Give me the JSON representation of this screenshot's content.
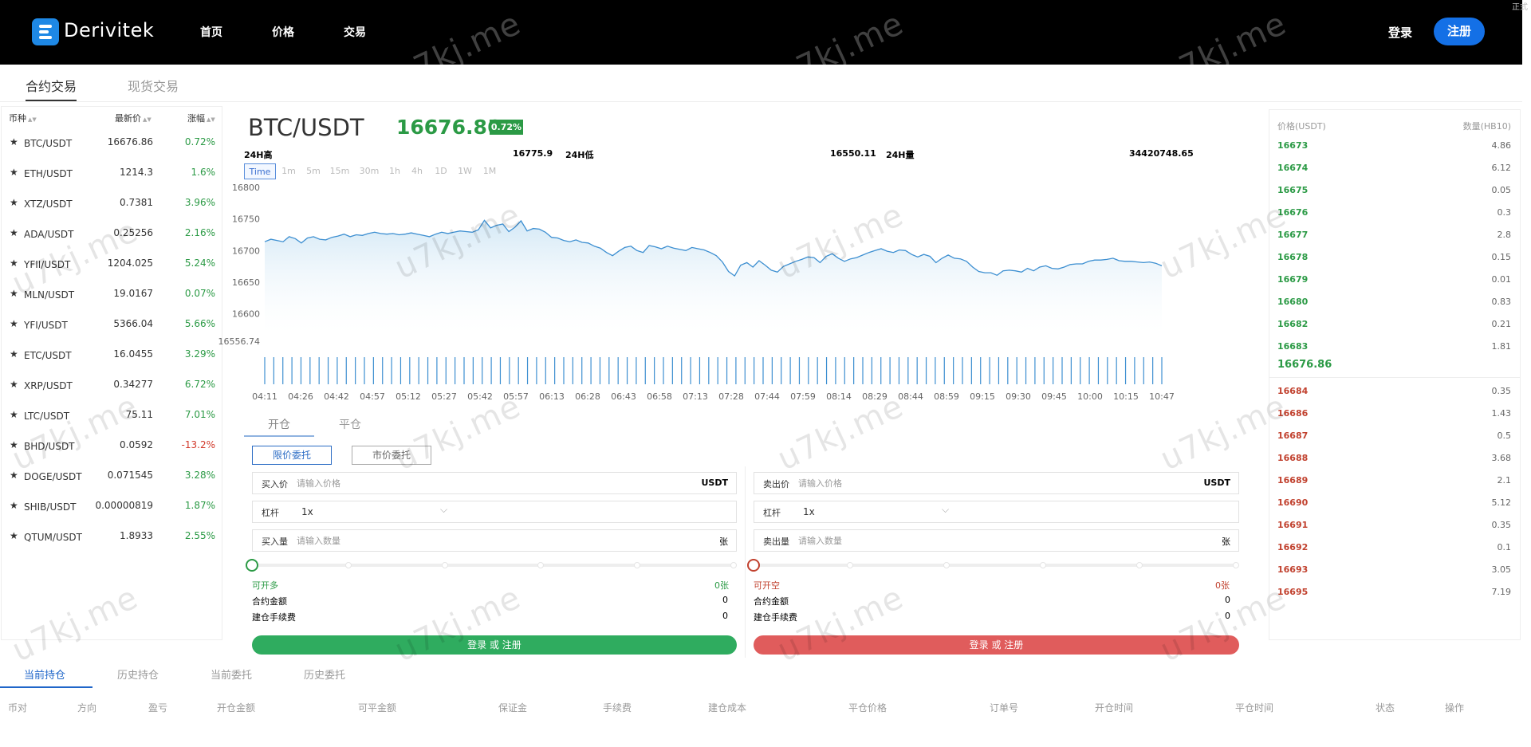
{
  "header": {
    "brand": "Derivitek",
    "nav": [
      "首页",
      "价格",
      "交易"
    ],
    "login": "登录",
    "register": "注册",
    "corner": "正式"
  },
  "subtabs": [
    "合约交易",
    "现货交易"
  ],
  "market": {
    "headers": [
      "币种",
      "最新价",
      "涨幅"
    ],
    "rows": [
      {
        "symbol": "BTC/USDT",
        "price": "16676.86",
        "change": "0.72%",
        "color": "#2b9a45"
      },
      {
        "symbol": "ETH/USDT",
        "price": "1214.3",
        "change": "1.6%",
        "color": "#2b9a45"
      },
      {
        "symbol": "XTZ/USDT",
        "price": "0.7381",
        "change": "3.96%",
        "color": "#2b9a45"
      },
      {
        "symbol": "ADA/USDT",
        "price": "0.25256",
        "change": "2.16%",
        "color": "#2b9a45"
      },
      {
        "symbol": "YFII/USDT",
        "price": "1204.025",
        "change": "5.24%",
        "color": "#2b9a45"
      },
      {
        "symbol": "MLN/USDT",
        "price": "19.0167",
        "change": "0.07%",
        "color": "#2b9a45"
      },
      {
        "symbol": "YFI/USDT",
        "price": "5366.04",
        "change": "5.66%",
        "color": "#2b9a45"
      },
      {
        "symbol": "ETC/USDT",
        "price": "16.0455",
        "change": "3.29%",
        "color": "#2b9a45"
      },
      {
        "symbol": "XRP/USDT",
        "price": "0.34277",
        "change": "6.72%",
        "color": "#2b9a45"
      },
      {
        "symbol": "LTC/USDT",
        "price": "75.11",
        "change": "7.01%",
        "color": "#2b9a45"
      },
      {
        "symbol": "BHD/USDT",
        "price": "0.0592",
        "change": "-13.2%",
        "color": "#d23b2c"
      },
      {
        "symbol": "DOGE/USDT",
        "price": "0.071545",
        "change": "3.28%",
        "color": "#2b9a45"
      },
      {
        "symbol": "SHIB/USDT",
        "price": "0.00000819",
        "change": "1.87%",
        "color": "#2b9a45"
      },
      {
        "symbol": "QTUM/USDT",
        "price": "1.8933",
        "change": "2.55%",
        "color": "#2b9a45"
      }
    ]
  },
  "ticker": {
    "pair": "BTC/USDT",
    "last": "16676.86",
    "change": "0.72%",
    "high_label": "24H高",
    "high": "16775.9",
    "low_label": "24H低",
    "low": "16550.11",
    "vol_label": "24H量",
    "vol": "34420748.65"
  },
  "timeframes": [
    "Time",
    "1m",
    "5m",
    "15m",
    "30m",
    "1h",
    "4h",
    "1D",
    "1W",
    "1M"
  ],
  "chart_data": {
    "type": "area",
    "title": "",
    "xlabel": "",
    "ylabel": "",
    "y_ticks": [
      "16800",
      "16750",
      "16700",
      "16650",
      "16600",
      "16556.74"
    ],
    "y_tick_values": [
      16800,
      16750,
      16700,
      16650,
      16600,
      16556.74
    ],
    "ylim": [
      16556.74,
      16800
    ],
    "x_ticks": [
      "04:11",
      "04:26",
      "04:42",
      "04:57",
      "05:12",
      "05:27",
      "05:42",
      "05:57",
      "06:13",
      "06:28",
      "06:43",
      "06:58",
      "07:13",
      "07:28",
      "07:44",
      "07:59",
      "08:14",
      "08:29",
      "08:44",
      "08:59",
      "09:15",
      "09:30",
      "09:45",
      "10:00",
      "10:15",
      "10:47"
    ],
    "series": [
      {
        "values": [
          16714,
          16718,
          16716,
          16714,
          16722,
          16719,
          16712,
          16720,
          16722,
          16718,
          16717,
          16721,
          16723,
          16726,
          16722,
          16725,
          16724,
          16727,
          16729,
          16727,
          16726,
          16727,
          16725,
          16726,
          16728,
          16726,
          16724,
          16722,
          16726,
          16729,
          16727,
          16729,
          16731,
          16730,
          16729,
          16733,
          16748,
          16736,
          16740,
          16742,
          16730,
          16737,
          16747,
          16731,
          16735,
          16734,
          16729,
          16721,
          16720,
          16716,
          16714,
          16717,
          16713,
          16712,
          16707,
          16704,
          16697,
          16692,
          16699,
          16705,
          16707,
          16700,
          16697,
          16708,
          16706,
          16703,
          16707,
          16704,
          16702,
          16700,
          16705,
          16703,
          16701,
          16697,
          16692,
          16682,
          16667,
          16660,
          16677,
          16681,
          16674,
          16684,
          16677,
          16669,
          16666,
          16675,
          16679,
          16683,
          16686,
          16690,
          16689,
          16681,
          16691,
          16695,
          16688,
          16683,
          16687,
          16689,
          16693,
          16697,
          16700,
          16703,
          16699,
          16697,
          16701,
          16700,
          16694,
          16690,
          16694,
          16691,
          16681,
          16688,
          16693,
          16688,
          16687,
          16683,
          16674,
          16667,
          16665,
          16665,
          16661,
          16668,
          16669,
          16668,
          16666,
          16672,
          16668,
          16674,
          16676,
          16672,
          16671,
          16674,
          16678,
          16679,
          16679,
          16683,
          16685,
          16685,
          16686,
          16688,
          16684,
          16683,
          16683,
          16682,
          16681,
          16682,
          16680,
          16676
        ]
      }
    ],
    "volume_bars": 100,
    "grid": false,
    "legend": "none"
  },
  "order": {
    "tabs": [
      "开仓",
      "平仓"
    ],
    "types": [
      "限价委托",
      "市价委托"
    ],
    "buy": {
      "price_label": "买入价",
      "price_placeholder": "请输入价格",
      "price_unit": "USDT",
      "leverage_label": "杠杆",
      "leverage": "1x",
      "qty_label": "买入量",
      "qty_placeholder": "请输入数量",
      "qty_unit": "张",
      "avail_label": "可开多",
      "avail": "0张",
      "amount_label": "合约金额",
      "amount": "0",
      "fee_label": "建仓手续费",
      "fee": "0",
      "button": "登录 或 注册",
      "color": "#2fac5f"
    },
    "sell": {
      "price_label": "卖出价",
      "price_placeholder": "请输入价格",
      "price_unit": "USDT",
      "leverage_label": "杠杆",
      "leverage": "1x",
      "qty_label": "卖出量",
      "qty_placeholder": "请输入数量",
      "qty_unit": "张",
      "avail_label": "可开空",
      "avail": "0张",
      "amount_label": "合约金额",
      "amount": "0",
      "fee_label": "建仓手续费",
      "fee": "0",
      "button": "登录 或 注册",
      "color": "#e05c5c"
    }
  },
  "orderbook": {
    "price_header": "价格(USDT)",
    "qty_header": "数量(HB10)",
    "bids": [
      {
        "price": "16673",
        "qty": "4.86"
      },
      {
        "price": "16674",
        "qty": "6.12"
      },
      {
        "price": "16675",
        "qty": "0.05"
      },
      {
        "price": "16676",
        "qty": "0.3"
      },
      {
        "price": "16677",
        "qty": "2.8"
      },
      {
        "price": "16678",
        "qty": "0.15"
      },
      {
        "price": "16679",
        "qty": "0.01"
      },
      {
        "price": "16680",
        "qty": "0.83"
      },
      {
        "price": "16682",
        "qty": "0.21"
      },
      {
        "price": "16683",
        "qty": "1.81"
      }
    ],
    "mid": "16676.86",
    "asks": [
      {
        "price": "16684",
        "qty": "0.35"
      },
      {
        "price": "16686",
        "qty": "1.43"
      },
      {
        "price": "16687",
        "qty": "0.5"
      },
      {
        "price": "16688",
        "qty": "3.68"
      },
      {
        "price": "16689",
        "qty": "2.1"
      },
      {
        "price": "16690",
        "qty": "5.12"
      },
      {
        "price": "16691",
        "qty": "0.35"
      },
      {
        "price": "16692",
        "qty": "0.1"
      },
      {
        "price": "16693",
        "qty": "3.05"
      },
      {
        "price": "16695",
        "qty": "7.19"
      }
    ],
    "bid_color": "#2b9a45",
    "ask_color": "#c1412e"
  },
  "bottom": {
    "tabs": [
      "当前持仓",
      "历史持仓",
      "当前委托",
      "历史委托"
    ],
    "columns": [
      "币对",
      "方向",
      "盈亏",
      "开仓金额",
      "可平金额",
      "保证金",
      "手续费",
      "建仓成本",
      "平仓价格",
      "订单号",
      "开仓时间",
      "平仓时间",
      "状态",
      "操作"
    ]
  },
  "watermark": "u7kj.me"
}
